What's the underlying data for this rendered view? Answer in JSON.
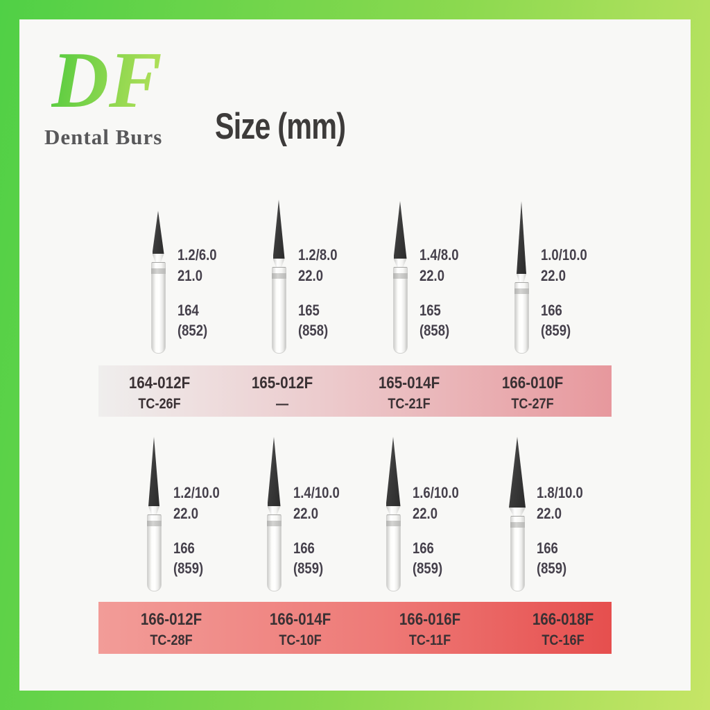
{
  "brand": {
    "logo": "DF",
    "name": "Dental Burs"
  },
  "title": "Size (mm)",
  "rows": [
    {
      "burs": [
        {
          "size": "1.2/6.0",
          "length": "21.0",
          "iso": "164",
          "alt": "(852)",
          "code": "164-012F",
          "tc": "TC-26F"
        },
        {
          "size": "1.2/8.0",
          "length": "22.0",
          "iso": "165",
          "alt": "(858)",
          "code": "165-012F",
          "tc": "—"
        },
        {
          "size": "1.4/8.0",
          "length": "22.0",
          "iso": "165",
          "alt": "(858)",
          "code": "165-014F",
          "tc": "TC-21F"
        },
        {
          "size": "1.0/10.0",
          "length": "22.0",
          "iso": "166",
          "alt": "(859)",
          "code": "166-010F",
          "tc": "TC-27F"
        }
      ]
    },
    {
      "burs": [
        {
          "size": "1.2/10.0",
          "length": "22.0",
          "iso": "166",
          "alt": "(859)",
          "code": "166-012F",
          "tc": "TC-28F"
        },
        {
          "size": "1.4/10.0",
          "length": "22.0",
          "iso": "166",
          "alt": "(859)",
          "code": "166-014F",
          "tc": "TC-10F"
        },
        {
          "size": "1.6/10.0",
          "length": "22.0",
          "iso": "166",
          "alt": "(859)",
          "code": "166-016F",
          "tc": "TC-11F"
        },
        {
          "size": "1.8/10.0",
          "length": "22.0",
          "iso": "166",
          "alt": "(859)",
          "code": "166-018F",
          "tc": "TC-16F"
        }
      ]
    }
  ],
  "colors": {
    "frame_green_start": "#50d046",
    "frame_green_end": "#c6e566",
    "logo_green_start": "#5ecd42",
    "logo_green_end": "#b2e059",
    "card_background": "#f8f8f6",
    "band1_start": "#efeeed",
    "band1_end": "#e7989d",
    "band2_start": "#f29c98",
    "band2_end": "#e64f4e",
    "spec_text": "#45404b",
    "code_text": "#3a3134",
    "bur_tip": "#3a3a3a"
  }
}
